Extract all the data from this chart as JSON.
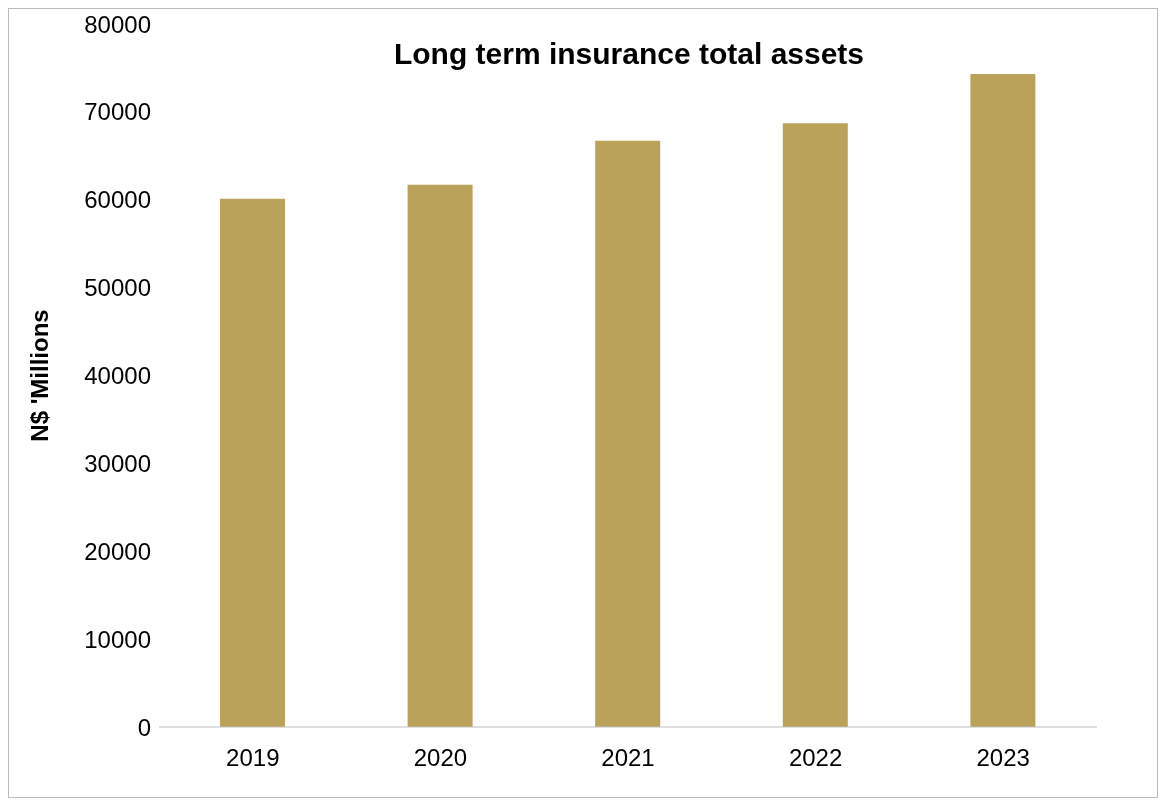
{
  "chart_data": {
    "type": "bar",
    "title": "Long term insurance total assets",
    "ylabel": "N$ 'Millions",
    "categories": [
      "2019",
      "2020",
      "2021",
      "2022",
      "2023"
    ],
    "values": [
      60100,
      61700,
      66700,
      68700,
      74300
    ],
    "color": "#bba25a",
    "ylim": [
      0,
      80000
    ],
    "yticks": [
      0,
      10000,
      20000,
      30000,
      40000,
      50000,
      60000,
      70000,
      80000
    ],
    "grid": false,
    "legend": false
  }
}
